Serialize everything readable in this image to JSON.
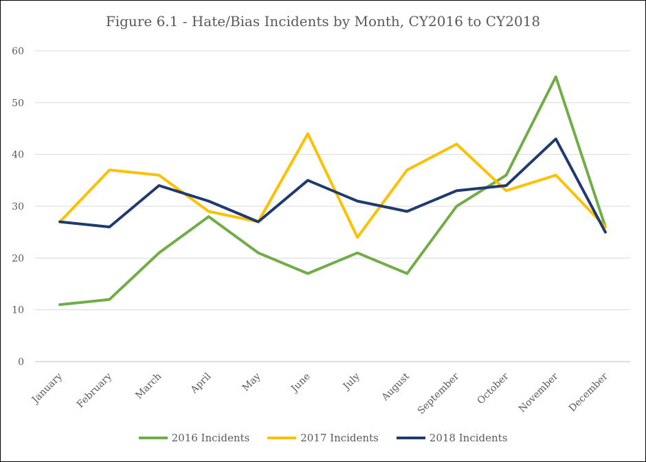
{
  "chart_data": {
    "type": "line",
    "title": "Figure 6.1 - Hate/Bias Incidents by Month, CY2016 to CY2018",
    "xlabel": "",
    "ylabel": "",
    "ylim": [
      0,
      60
    ],
    "yticks": [
      "0",
      "10",
      "20",
      "30",
      "40",
      "50",
      "60"
    ],
    "categories": [
      "January",
      "February",
      "March",
      "April",
      "May",
      "June",
      "July",
      "August",
      "September",
      "October",
      "November",
      "December"
    ],
    "grid": true,
    "legend_position": "bottom",
    "series": [
      {
        "name": "2016 Incidents",
        "color": "#70AD47",
        "values": [
          11,
          12,
          21,
          28,
          21,
          17,
          21,
          17,
          30,
          36,
          55,
          26
        ]
      },
      {
        "name": "2017 Incidents",
        "color": "#FFC000",
        "values": [
          27,
          37,
          36,
          29,
          27,
          44,
          24,
          37,
          42,
          33,
          36,
          26
        ]
      },
      {
        "name": "2018 Incidents",
        "color": "#1F3A6E",
        "values": [
          27,
          26,
          34,
          31,
          27,
          35,
          31,
          29,
          33,
          34,
          43,
          25
        ]
      }
    ]
  }
}
